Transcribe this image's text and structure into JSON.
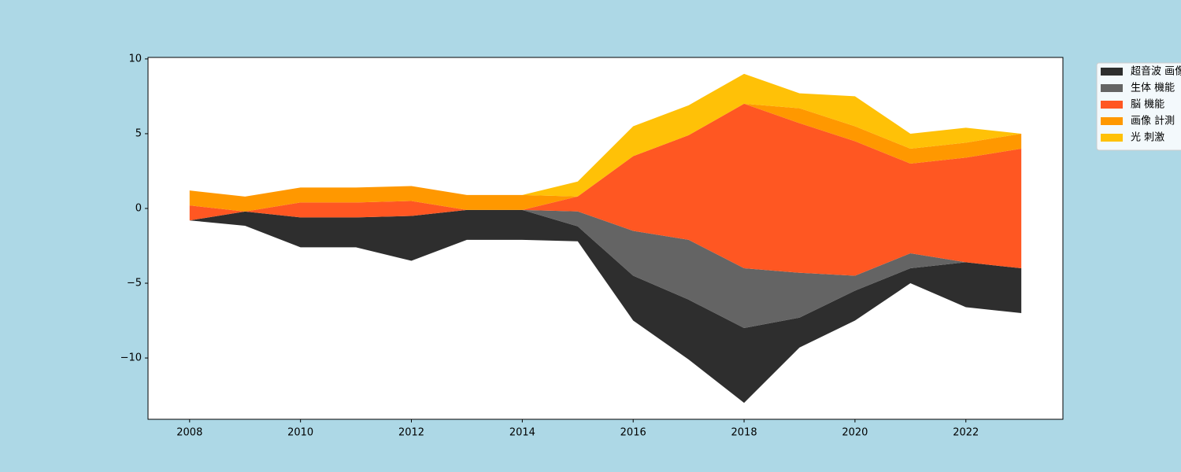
{
  "chart_data": {
    "type": "streamgraph",
    "x": [
      2008,
      2009,
      2010,
      2011,
      2012,
      2013,
      2014,
      2015,
      2016,
      2017,
      2018,
      2019,
      2020,
      2021,
      2022,
      2023
    ],
    "series": [
      {
        "name": "超音波 画像",
        "color": "#2e2e2e",
        "values": [
          0,
          0.95,
          2,
          2,
          3,
          2,
          2,
          1,
          3,
          4,
          5,
          2,
          2,
          1,
          3,
          3
        ]
      },
      {
        "name": "生体 機能",
        "color": "#646464",
        "values": [
          0,
          0,
          0,
          0,
          0,
          0,
          0,
          1,
          3,
          4,
          4,
          3,
          1,
          1,
          0,
          0
        ]
      },
      {
        "name": "脳 機能",
        "color": "#ff5722",
        "values": [
          1,
          0,
          1,
          1,
          1,
          0,
          0,
          1,
          5,
          7,
          11,
          10,
          9,
          6,
          7,
          8
        ]
      },
      {
        "name": "画像 計測",
        "color": "#ff9800",
        "values": [
          1,
          1,
          1,
          1,
          1,
          1,
          1,
          0,
          0,
          0,
          0,
          1,
          1,
          1,
          1,
          1
        ]
      },
      {
        "name": "光 刺激",
        "color": "#ffc107",
        "values": [
          0,
          0,
          0,
          0,
          0,
          0,
          0,
          1,
          2,
          2,
          2,
          1,
          2,
          1,
          1,
          0
        ]
      }
    ],
    "xlim": [
      2007.25,
      2023.75
    ],
    "xticks": [
      2008,
      2010,
      2012,
      2014,
      2016,
      2018,
      2020,
      2022
    ],
    "ylim": [
      -14.1,
      10.1
    ],
    "yticks": [
      {
        "value": -10,
        "label": "−10"
      },
      {
        "value": -5,
        "label": "−5"
      },
      0,
      5,
      10
    ],
    "baseline": "wiggle",
    "legend": "upper right outside"
  }
}
